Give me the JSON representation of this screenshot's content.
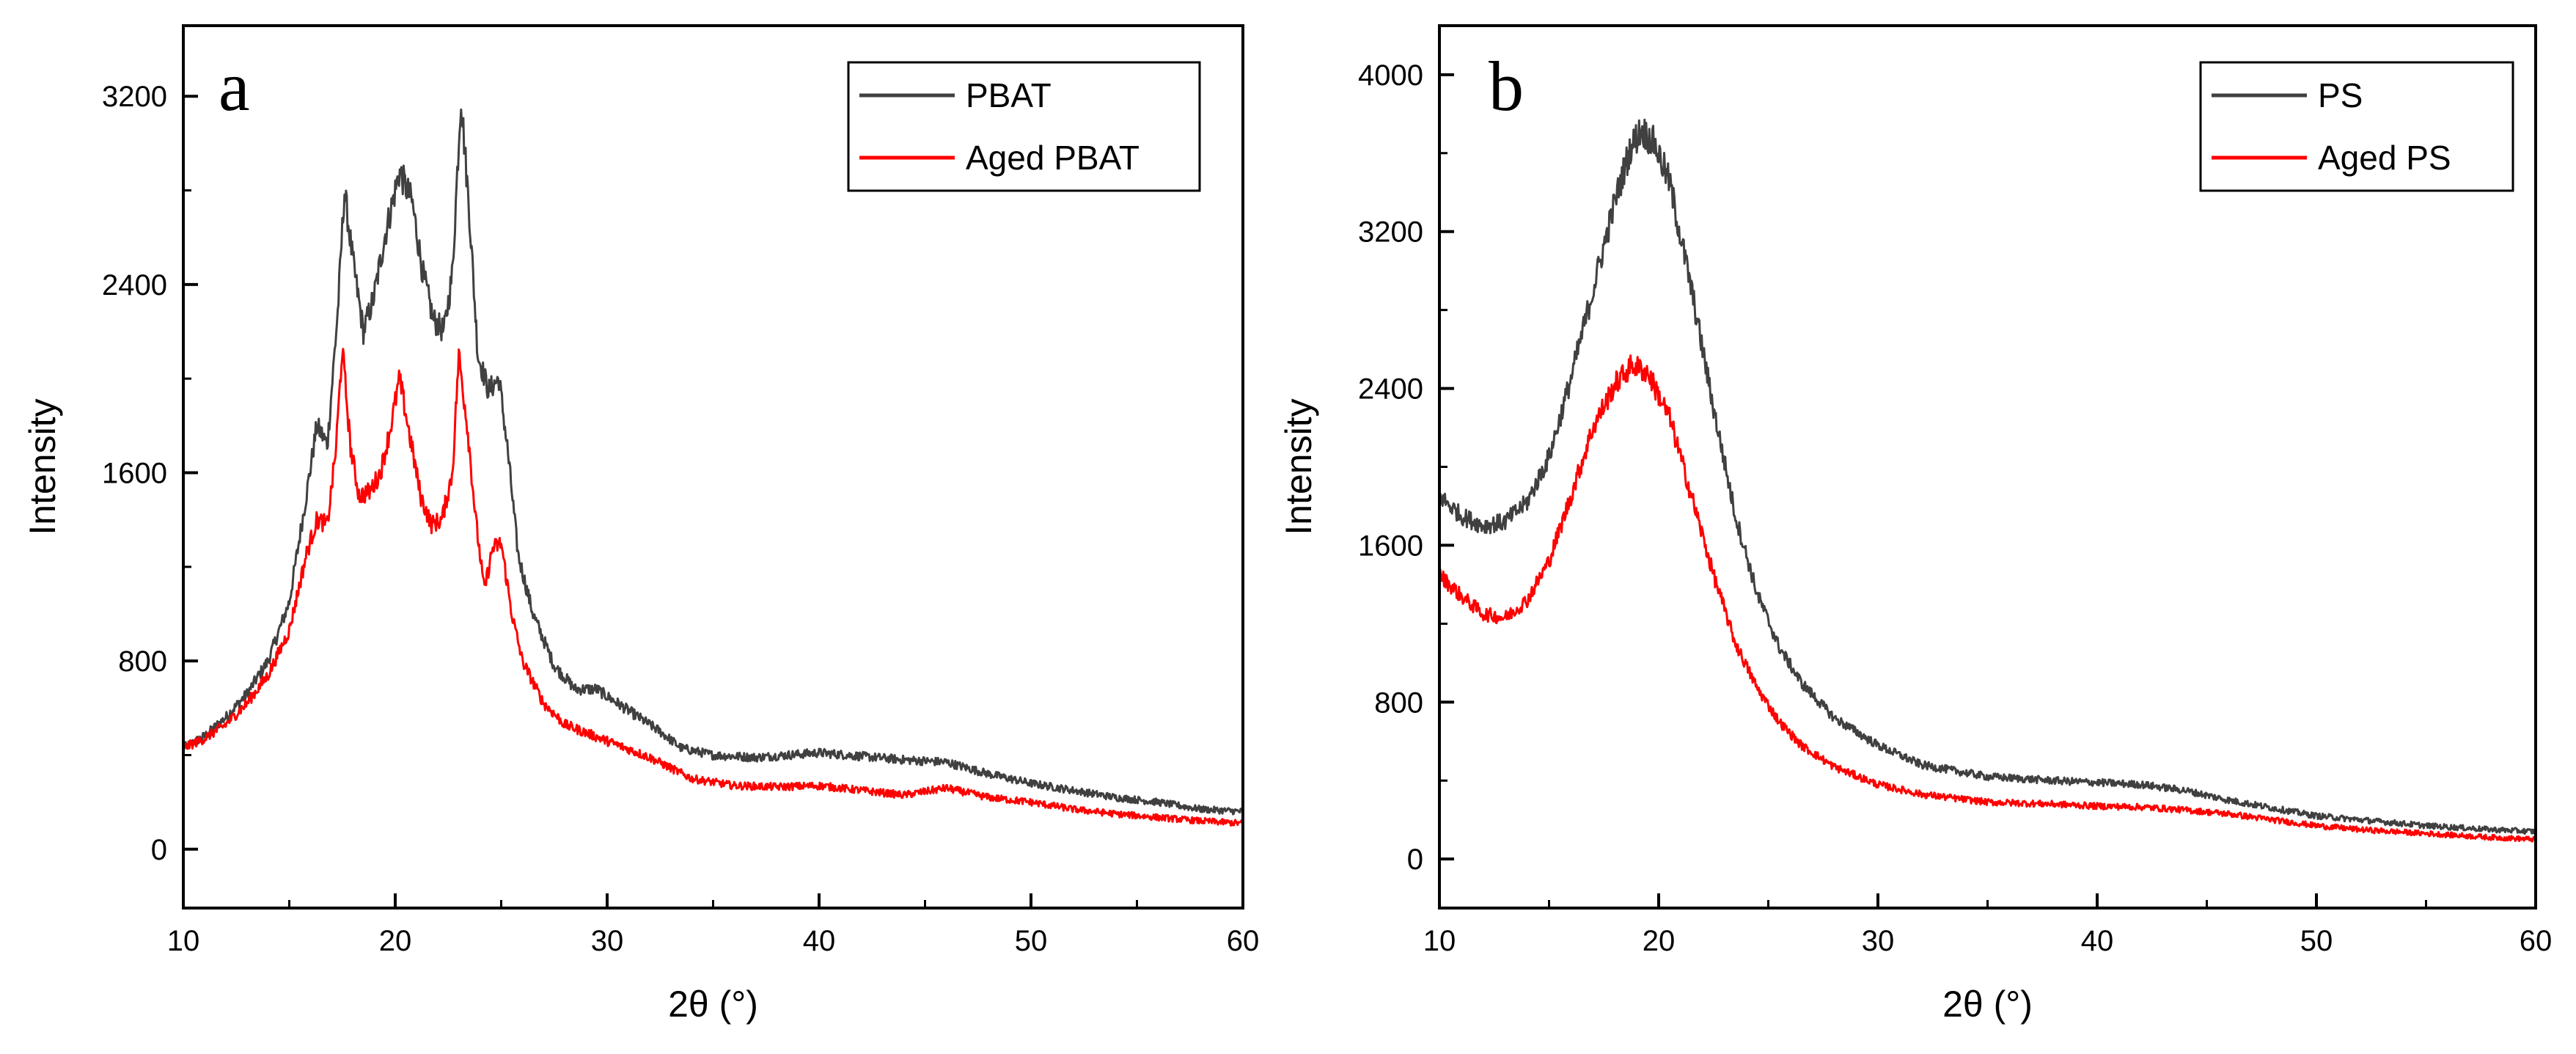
{
  "chart_data": [
    {
      "type": "line",
      "panel_label": "a",
      "title": "",
      "xlabel": "2θ (°)",
      "ylabel": "Intensity",
      "xlim": [
        10,
        60
      ],
      "ylim": [
        -250,
        3500
      ],
      "xticks": [
        10,
        20,
        30,
        40,
        50,
        60
      ],
      "yticks": [
        0,
        800,
        1600,
        2400,
        3200
      ],
      "legend": "top-right",
      "series": [
        {
          "name": "PBAT",
          "color": "#404040",
          "points": [
            [
              10,
              430
            ],
            [
              11,
              480
            ],
            [
              12,
              560
            ],
            [
              13,
              660
            ],
            [
              14,
              800
            ],
            [
              15,
              1050
            ],
            [
              15.8,
              1500
            ],
            [
              16.3,
              1800
            ],
            [
              16.8,
              1720
            ],
            [
              17.3,
              2300
            ],
            [
              17.6,
              2800
            ],
            [
              18,
              2500
            ],
            [
              18.5,
              2200
            ],
            [
              19,
              2350
            ],
            [
              19.5,
              2600
            ],
            [
              20.2,
              2880
            ],
            [
              20.8,
              2750
            ],
            [
              21.3,
              2450
            ],
            [
              21.8,
              2250
            ],
            [
              22.3,
              2200
            ],
            [
              22.7,
              2450
            ],
            [
              23.1,
              3200
            ],
            [
              23.5,
              2700
            ],
            [
              23.9,
              2100
            ],
            [
              24.4,
              1950
            ],
            [
              24.9,
              2000
            ],
            [
              25.3,
              1700
            ],
            [
              25.8,
              1250
            ],
            [
              26.5,
              1000
            ],
            [
              27.5,
              780
            ],
            [
              28.5,
              680
            ],
            [
              29.5,
              680
            ],
            [
              30.5,
              620
            ],
            [
              31.5,
              560
            ],
            [
              32.5,
              500
            ],
            [
              33.5,
              430
            ],
            [
              35,
              400
            ],
            [
              37,
              390
            ],
            [
              40,
              410
            ],
            [
              42,
              395
            ],
            [
              44,
              380
            ],
            [
              46,
              370
            ],
            [
              48,
              320
            ],
            [
              50,
              280
            ],
            [
              52,
              250
            ],
            [
              54,
              220
            ],
            [
              56,
              200
            ],
            [
              58,
              170
            ],
            [
              60,
              160
            ]
          ]
        },
        {
          "name": "Aged PBAT",
          "color": "#ff0000",
          "points": [
            [
              10,
              430
            ],
            [
              11,
              470
            ],
            [
              12,
              530
            ],
            [
              13,
              620
            ],
            [
              14,
              740
            ],
            [
              15,
              930
            ],
            [
              15.8,
              1250
            ],
            [
              16.3,
              1400
            ],
            [
              16.8,
              1380
            ],
            [
              17.2,
              1700
            ],
            [
              17.5,
              2130
            ],
            [
              17.9,
              1700
            ],
            [
              18.3,
              1500
            ],
            [
              18.8,
              1520
            ],
            [
              19.3,
              1600
            ],
            [
              19.8,
              1800
            ],
            [
              20.2,
              2000
            ],
            [
              20.7,
              1750
            ],
            [
              21.2,
              1500
            ],
            [
              21.7,
              1380
            ],
            [
              22.2,
              1400
            ],
            [
              22.7,
              1600
            ],
            [
              23,
              2100
            ],
            [
              23.4,
              1800
            ],
            [
              23.8,
              1400
            ],
            [
              24.2,
              1100
            ],
            [
              24.6,
              1280
            ],
            [
              25,
              1300
            ],
            [
              25.5,
              1000
            ],
            [
              26,
              800
            ],
            [
              27,
              620
            ],
            [
              28,
              530
            ],
            [
              30,
              460
            ],
            [
              32,
              390
            ],
            [
              34,
              300
            ],
            [
              36,
              270
            ],
            [
              38,
              265
            ],
            [
              40,
              270
            ],
            [
              42,
              250
            ],
            [
              44,
              230
            ],
            [
              46,
              260
            ],
            [
              48,
              220
            ],
            [
              50,
              200
            ],
            [
              52,
              170
            ],
            [
              54,
              150
            ],
            [
              56,
              135
            ],
            [
              58,
              120
            ],
            [
              60,
              110
            ]
          ]
        }
      ]
    },
    {
      "type": "line",
      "panel_label": "b",
      "title": "",
      "xlabel": "2θ (°)",
      "ylabel": "Intensity",
      "xlim": [
        10,
        60
      ],
      "ylim": [
        -250,
        4250
      ],
      "xticks": [
        10,
        20,
        30,
        40,
        50,
        60
      ],
      "yticks": [
        0,
        800,
        1600,
        2400,
        3200,
        4000
      ],
      "legend": "top-right",
      "series": [
        {
          "name": "PS",
          "color": "#404040",
          "points": [
            [
              10,
              1850
            ],
            [
              11,
              1750
            ],
            [
              12,
              1700
            ],
            [
              13,
              1720
            ],
            [
              14,
              1820
            ],
            [
              15,
              2050
            ],
            [
              16,
              2450
            ],
            [
              17,
              2900
            ],
            [
              18,
              3350
            ],
            [
              18.7,
              3620
            ],
            [
              19.2,
              3720
            ],
            [
              19.8,
              3650
            ],
            [
              20.5,
              3450
            ],
            [
              21.5,
              2900
            ],
            [
              22.5,
              2300
            ],
            [
              23.5,
              1750
            ],
            [
              24.5,
              1350
            ],
            [
              25.5,
              1080
            ],
            [
              26.5,
              900
            ],
            [
              28,
              720
            ],
            [
              30,
              580
            ],
            [
              32,
              480
            ],
            [
              35,
              420
            ],
            [
              38,
              400
            ],
            [
              40,
              390
            ],
            [
              42,
              380
            ],
            [
              44,
              350
            ],
            [
              46,
              300
            ],
            [
              48,
              260
            ],
            [
              50,
              220
            ],
            [
              52,
              200
            ],
            [
              55,
              170
            ],
            [
              58,
              150
            ],
            [
              60,
              140
            ]
          ]
        },
        {
          "name": "Aged PS",
          "color": "#ff0000",
          "points": [
            [
              10,
              1450
            ],
            [
              11,
              1340
            ],
            [
              12,
              1250
            ],
            [
              13,
              1230
            ],
            [
              14,
              1320
            ],
            [
              15,
              1520
            ],
            [
              16,
              1850
            ],
            [
              17,
              2200
            ],
            [
              18,
              2420
            ],
            [
              18.8,
              2520
            ],
            [
              19.5,
              2480
            ],
            [
              20.5,
              2250
            ],
            [
              21.5,
              1850
            ],
            [
              22.5,
              1450
            ],
            [
              23.5,
              1100
            ],
            [
              24.5,
              870
            ],
            [
              25.5,
              700
            ],
            [
              26.5,
              580
            ],
            [
              28,
              470
            ],
            [
              30,
              380
            ],
            [
              32,
              330
            ],
            [
              35,
              290
            ],
            [
              38,
              280
            ],
            [
              40,
              270
            ],
            [
              42,
              265
            ],
            [
              44,
              250
            ],
            [
              46,
              230
            ],
            [
              48,
              200
            ],
            [
              50,
              170
            ],
            [
              52,
              150
            ],
            [
              55,
              130
            ],
            [
              58,
              110
            ],
            [
              60,
              100
            ]
          ]
        }
      ]
    }
  ]
}
